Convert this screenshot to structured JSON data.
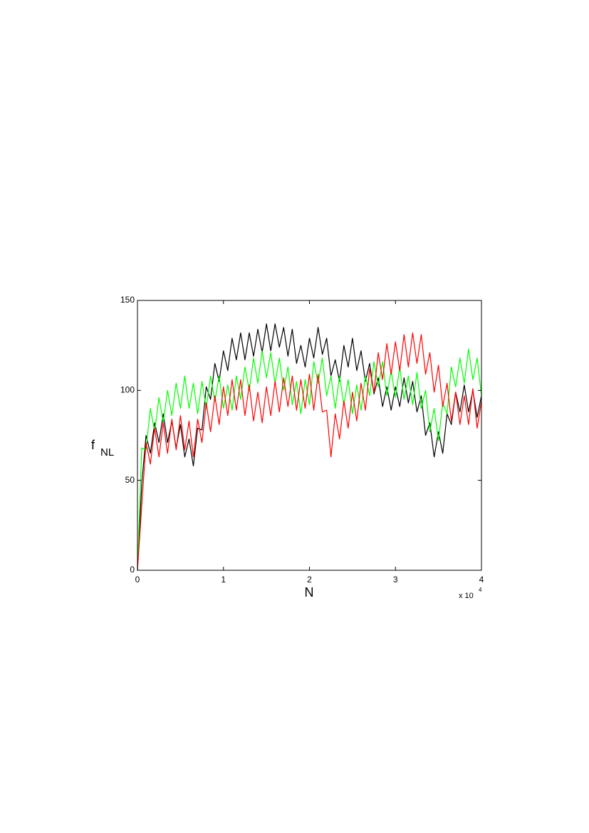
{
  "chart_data": {
    "type": "line",
    "xlabel": "N",
    "ylabel": {
      "main": "f",
      "subscript": "NL"
    },
    "x_multiplier": {
      "base": "x 10",
      "exponent": "4"
    },
    "x": [
      0,
      500,
      1000,
      1500,
      2000,
      2500,
      3000,
      3500,
      4000,
      4500,
      5000,
      5500,
      6000,
      6500,
      7000,
      7500,
      8000,
      8500,
      9000,
      9500,
      10000,
      10500,
      11000,
      11500,
      12000,
      12500,
      13000,
      13500,
      14000,
      14500,
      15000,
      15500,
      16000,
      16500,
      17000,
      17500,
      18000,
      18500,
      19000,
      19500,
      20000,
      20500,
      21000,
      21500,
      22000,
      22500,
      23000,
      23500,
      24000,
      24500,
      25000,
      25500,
      26000,
      26500,
      27000,
      27500,
      28000,
      28500,
      29000,
      29500,
      30000,
      30500,
      31000,
      31500,
      32000,
      32500,
      33000,
      33500,
      34000,
      34500,
      35000,
      35500,
      36000,
      36500,
      37000,
      37500,
      38000,
      38500,
      39000,
      39500,
      40000
    ],
    "series": [
      {
        "color": "#000000",
        "values": [
          0,
          48,
          75,
          65,
          82,
          71,
          87,
          71,
          83,
          68,
          81,
          63,
          73,
          58,
          79,
          78,
          102,
          95,
          115,
          105,
          122,
          111,
          129,
          117,
          132,
          117,
          132,
          119,
          134,
          121,
          137,
          122,
          137,
          124,
          135,
          119,
          134,
          115,
          125,
          113,
          129,
          118,
          135,
          120,
          129,
          108,
          117,
          105,
          125,
          113,
          129,
          111,
          122,
          105,
          115,
          98,
          107,
          91,
          102,
          89,
          102,
          91,
          107,
          93,
          105,
          88,
          97,
          75,
          82,
          63,
          77,
          65,
          87,
          81,
          99,
          88,
          103,
          88,
          100,
          85,
          97
        ]
      },
      {
        "color": "#00ff00",
        "values": [
          0,
          68,
          67,
          90,
          77,
          96,
          82,
          100,
          86,
          104,
          90,
          108,
          90,
          104,
          87,
          105,
          90,
          108,
          94,
          108,
          90,
          103,
          89,
          108,
          95,
          113,
          100,
          118,
          104,
          122,
          107,
          121,
          104,
          118,
          100,
          113,
          92,
          105,
          87,
          106,
          92,
          116,
          104,
          118,
          97,
          108,
          90,
          108,
          92,
          106,
          87,
          103,
          89,
          108,
          97,
          116,
          102,
          116,
          97,
          111,
          96,
          113,
          95,
          108,
          92,
          110,
          90,
          100,
          77,
          90,
          72,
          93,
          87,
          113,
          102,
          118,
          104,
          123,
          106,
          118,
          97
        ]
      },
      {
        "color": "#ff0000",
        "values": [
          0,
          36,
          71,
          59,
          79,
          63,
          82,
          65,
          84,
          67,
          86,
          67,
          83,
          63,
          84,
          71,
          93,
          77,
          97,
          81,
          102,
          86,
          106,
          89,
          106,
          86,
          103,
          83,
          99,
          82,
          102,
          86,
          105,
          88,
          107,
          91,
          108,
          89,
          106,
          90,
          109,
          89,
          109,
          88,
          89,
          63,
          87,
          73,
          94,
          79,
          99,
          83,
          104,
          89,
          112,
          99,
          121,
          106,
          126,
          109,
          127,
          111,
          131,
          113,
          132,
          115,
          131,
          109,
          121,
          99,
          114,
          91,
          104,
          83,
          99,
          81,
          97,
          81,
          101,
          79,
          94
        ]
      }
    ],
    "xlim": [
      0,
      40000
    ],
    "xticks": [
      {
        "value": 0,
        "label": "0"
      },
      {
        "value": 10000,
        "label": "1"
      },
      {
        "value": 20000,
        "label": "2"
      },
      {
        "value": 30000,
        "label": "3"
      },
      {
        "value": 40000,
        "label": "4"
      }
    ],
    "ylim": [
      0,
      150
    ],
    "yticks": [
      0,
      50,
      100,
      150
    ],
    "grid": false
  }
}
